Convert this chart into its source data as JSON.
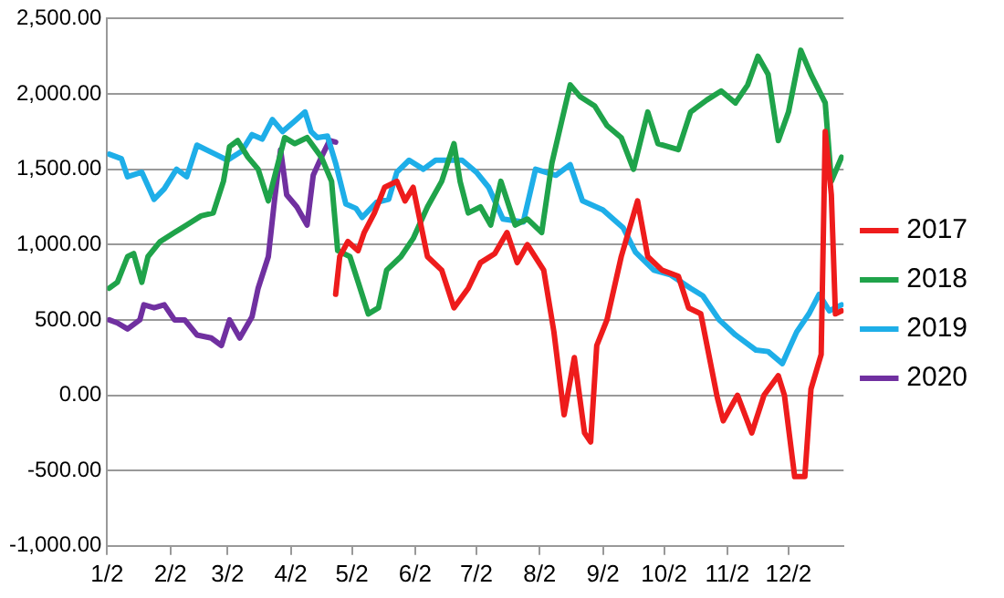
{
  "chart_data": {
    "type": "line",
    "xlim": [
      "--01-02",
      "--12-29"
    ],
    "xticks": [
      {
        "value": "--01-02",
        "label": "1/2"
      },
      {
        "value": "--02-02",
        "label": "2/2"
      },
      {
        "value": "--03-02",
        "label": "3/2"
      },
      {
        "value": "--04-02",
        "label": "4/2"
      },
      {
        "value": "--05-02",
        "label": "5/2"
      },
      {
        "value": "--06-02",
        "label": "6/2"
      },
      {
        "value": "--07-02",
        "label": "7/2"
      },
      {
        "value": "--08-02",
        "label": "8/2"
      },
      {
        "value": "--09-02",
        "label": "9/2"
      },
      {
        "value": "--10-02",
        "label": "10/2"
      },
      {
        "value": "--11-02",
        "label": "11/2"
      },
      {
        "value": "--12-02",
        "label": "12/2"
      }
    ],
    "ylim": [
      -1000,
      2500
    ],
    "yticks": [
      {
        "value": -1000,
        "label": "-1,000.00"
      },
      {
        "value": -500,
        "label": "-500.00"
      },
      {
        "value": 0,
        "label": "0.00"
      },
      {
        "value": 500,
        "label": "500.00"
      },
      {
        "value": 1000,
        "label": "1,000.00"
      },
      {
        "value": 1500,
        "label": "1,500.00"
      },
      {
        "value": 2000,
        "label": "2,000.00"
      },
      {
        "value": 2500,
        "label": "2,500.00"
      }
    ],
    "grid": "y",
    "legend": "right",
    "marker": "none",
    "line_style": "solid",
    "series": [
      {
        "name": "2017",
        "color": "#ee1c1c",
        "x": [
          "--04-24",
          "--04-26",
          "--04-30",
          "--05-05",
          "--05-08",
          "--05-13",
          "--05-18",
          "--05-24",
          "--05-28",
          "--06-01",
          "--06-08",
          "--06-15",
          "--06-21",
          "--06-28",
          "--07-04",
          "--07-11",
          "--07-17",
          "--07-22",
          "--07-27",
          "--08-04",
          "--08-09",
          "--08-14",
          "--08-19",
          "--08-24",
          "--08-27",
          "--08-30",
          "--09-04",
          "--09-11",
          "--09-19",
          "--09-24",
          "--10-01",
          "--10-09",
          "--10-14",
          "--10-20",
          "--10-28",
          "--10-31",
          "--11-07",
          "--11-14",
          "--11-20",
          "--11-27",
          "--11-30",
          "--12-05",
          "--12-10",
          "--12-13",
          "--12-18",
          "--12-20",
          "--12-23",
          "--12-25",
          "--12-28"
        ],
        "values": [
          670,
          920,
          1020,
          960,
          1080,
          1210,
          1380,
          1420,
          1290,
          1380,
          920,
          830,
          580,
          710,
          880,
          940,
          1080,
          880,
          1000,
          830,
          420,
          -130,
          250,
          -250,
          -310,
          330,
          500,
          920,
          1290,
          920,
          830,
          790,
          580,
          540,
          -10,
          -170,
          0,
          -250,
          0,
          130,
          0,
          -540,
          -540,
          40,
          270,
          1750,
          1330,
          540,
          560
        ]
      },
      {
        "name": "2018",
        "color": "#1fa34a",
        "x": [
          "--01-03",
          "--01-07",
          "--01-12",
          "--01-15",
          "--01-19",
          "--01-22",
          "--01-28",
          "--02-04",
          "--02-10",
          "--02-17",
          "--02-23",
          "--02-28",
          "--03-03",
          "--03-07",
          "--03-12",
          "--03-17",
          "--03-22",
          "--03-26",
          "--03-30",
          "--04-04",
          "--04-10",
          "--04-17",
          "--04-22",
          "--04-25",
          "--05-01",
          "--05-06",
          "--05-10",
          "--05-15",
          "--05-19",
          "--05-26",
          "--06-01",
          "--06-08",
          "--06-15",
          "--06-21",
          "--06-24",
          "--06-28",
          "--07-04",
          "--07-09",
          "--07-14",
          "--07-21",
          "--07-27",
          "--08-03",
          "--08-08",
          "--08-13",
          "--08-17",
          "--08-22",
          "--08-29",
          "--09-04",
          "--09-11",
          "--09-17",
          "--09-24",
          "--09-29",
          "--10-09",
          "--10-15",
          "--10-23",
          "--10-30",
          "--11-06",
          "--11-12",
          "--11-17",
          "--11-22",
          "--11-27",
          "--12-02",
          "--12-08",
          "--12-13",
          "--12-20",
          "--12-23",
          "--12-28"
        ],
        "values": [
          710,
          750,
          920,
          940,
          750,
          920,
          1020,
          1080,
          1130,
          1190,
          1210,
          1420,
          1650,
          1690,
          1580,
          1500,
          1290,
          1500,
          1710,
          1670,
          1710,
          1580,
          1420,
          960,
          920,
          710,
          540,
          580,
          830,
          920,
          1040,
          1250,
          1420,
          1670,
          1420,
          1210,
          1250,
          1130,
          1420,
          1130,
          1170,
          1080,
          1540,
          1830,
          2060,
          1980,
          1920,
          1790,
          1710,
          1500,
          1880,
          1670,
          1630,
          1880,
          1960,
          2020,
          1940,
          2060,
          2250,
          2130,
          1690,
          1880,
          2290,
          2130,
          1940,
          1420,
          1580
        ]
      },
      {
        "name": "2019",
        "color": "#1eaee8",
        "x": [
          "--01-03",
          "--01-09",
          "--01-12",
          "--01-19",
          "--01-25",
          "--01-30",
          "--02-05",
          "--02-10",
          "--02-15",
          "--02-24",
          "--03-02",
          "--03-09",
          "--03-14",
          "--03-19",
          "--03-24",
          "--03-29",
          "--04-04",
          "--04-09",
          "--04-12",
          "--04-15",
          "--04-20",
          "--04-24",
          "--04-29",
          "--05-04",
          "--05-07",
          "--05-14",
          "--05-20",
          "--05-24",
          "--05-30",
          "--06-06",
          "--06-12",
          "--06-25",
          "--07-02",
          "--07-08",
          "--07-15",
          "--07-25",
          "--07-31",
          "--08-10",
          "--08-17",
          "--08-23",
          "--09-02",
          "--09-12",
          "--09-18",
          "--09-27",
          "--10-05",
          "--10-15",
          "--10-21",
          "--10-29",
          "--11-06",
          "--11-16",
          "--11-22",
          "--11-29",
          "--12-06",
          "--12-12",
          "--12-17",
          "--12-22",
          "--12-28"
        ],
        "values": [
          1600,
          1570,
          1450,
          1480,
          1300,
          1370,
          1500,
          1450,
          1660,
          1600,
          1560,
          1620,
          1730,
          1700,
          1830,
          1750,
          1820,
          1880,
          1750,
          1710,
          1720,
          1540,
          1270,
          1240,
          1180,
          1280,
          1300,
          1480,
          1560,
          1500,
          1560,
          1560,
          1480,
          1380,
          1170,
          1150,
          1500,
          1460,
          1530,
          1290,
          1230,
          1110,
          950,
          830,
          800,
          710,
          660,
          500,
          400,
          300,
          290,
          210,
          420,
          540,
          670,
          560,
          600
        ]
      },
      {
        "name": "2020",
        "color": "#7030a0",
        "x": [
          "--01-03",
          "--01-07",
          "--01-12",
          "--01-18",
          "--01-20",
          "--01-25",
          "--01-30",
          "--02-04",
          "--02-09",
          "--02-15",
          "--02-22",
          "--02-27",
          "--03-03",
          "--03-08",
          "--03-14",
          "--03-17",
          "--03-22",
          "--03-25",
          "--03-28",
          "--03-31",
          "--04-05",
          "--04-10",
          "--04-13",
          "--04-17",
          "--04-21",
          "--04-24"
        ],
        "values": [
          500,
          480,
          440,
          500,
          600,
          580,
          600,
          500,
          500,
          400,
          380,
          330,
          500,
          380,
          520,
          710,
          920,
          1290,
          1630,
          1330,
          1250,
          1130,
          1460,
          1580,
          1690,
          1680
        ]
      }
    ]
  }
}
